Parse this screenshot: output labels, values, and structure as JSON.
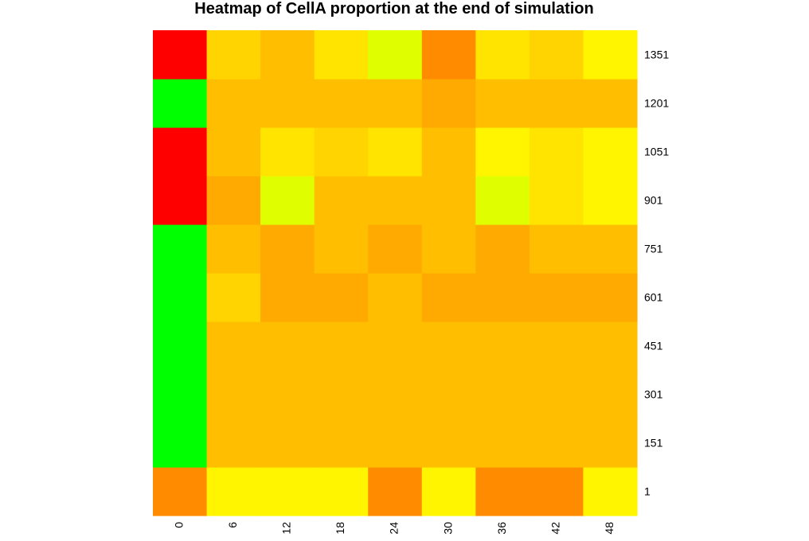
{
  "chart_data": {
    "type": "heatmap",
    "title": "Heatmap of CellA proportion at the end of simulation",
    "x_labels": [
      "0",
      "6",
      "12",
      "18",
      "24",
      "30",
      "36",
      "42",
      "48"
    ],
    "y_labels": [
      "1",
      "151",
      "301",
      "451",
      "601",
      "751",
      "901",
      "1051",
      "1201",
      "1351"
    ],
    "color_scale": [
      "#00ff00",
      "#ff0000",
      "#ff8c00",
      "#ffaa00",
      "#ffbf00",
      "#ffd400",
      "#ffe400",
      "#fff500",
      "#dfff00"
    ],
    "values": [
      [
        2,
        7,
        7,
        7,
        2,
        7,
        2,
        2,
        7
      ],
      [
        0,
        4,
        4,
        4,
        4,
        4,
        4,
        4,
        4
      ],
      [
        0,
        4,
        4,
        4,
        4,
        4,
        4,
        4,
        4
      ],
      [
        0,
        4,
        4,
        4,
        4,
        4,
        4,
        4,
        4
      ],
      [
        0,
        5,
        3,
        3,
        4,
        3,
        3,
        3,
        3
      ],
      [
        0,
        4,
        3,
        4,
        3,
        4,
        3,
        4,
        4
      ],
      [
        1,
        3,
        8,
        4,
        4,
        4,
        8,
        6,
        7
      ],
      [
        1,
        4,
        6,
        5,
        6,
        4,
        7,
        6,
        7
      ],
      [
        0,
        4,
        4,
        4,
        4,
        3,
        4,
        4,
        4
      ],
      [
        1,
        5,
        4,
        6,
        8,
        2,
        6,
        5,
        7
      ]
    ]
  }
}
